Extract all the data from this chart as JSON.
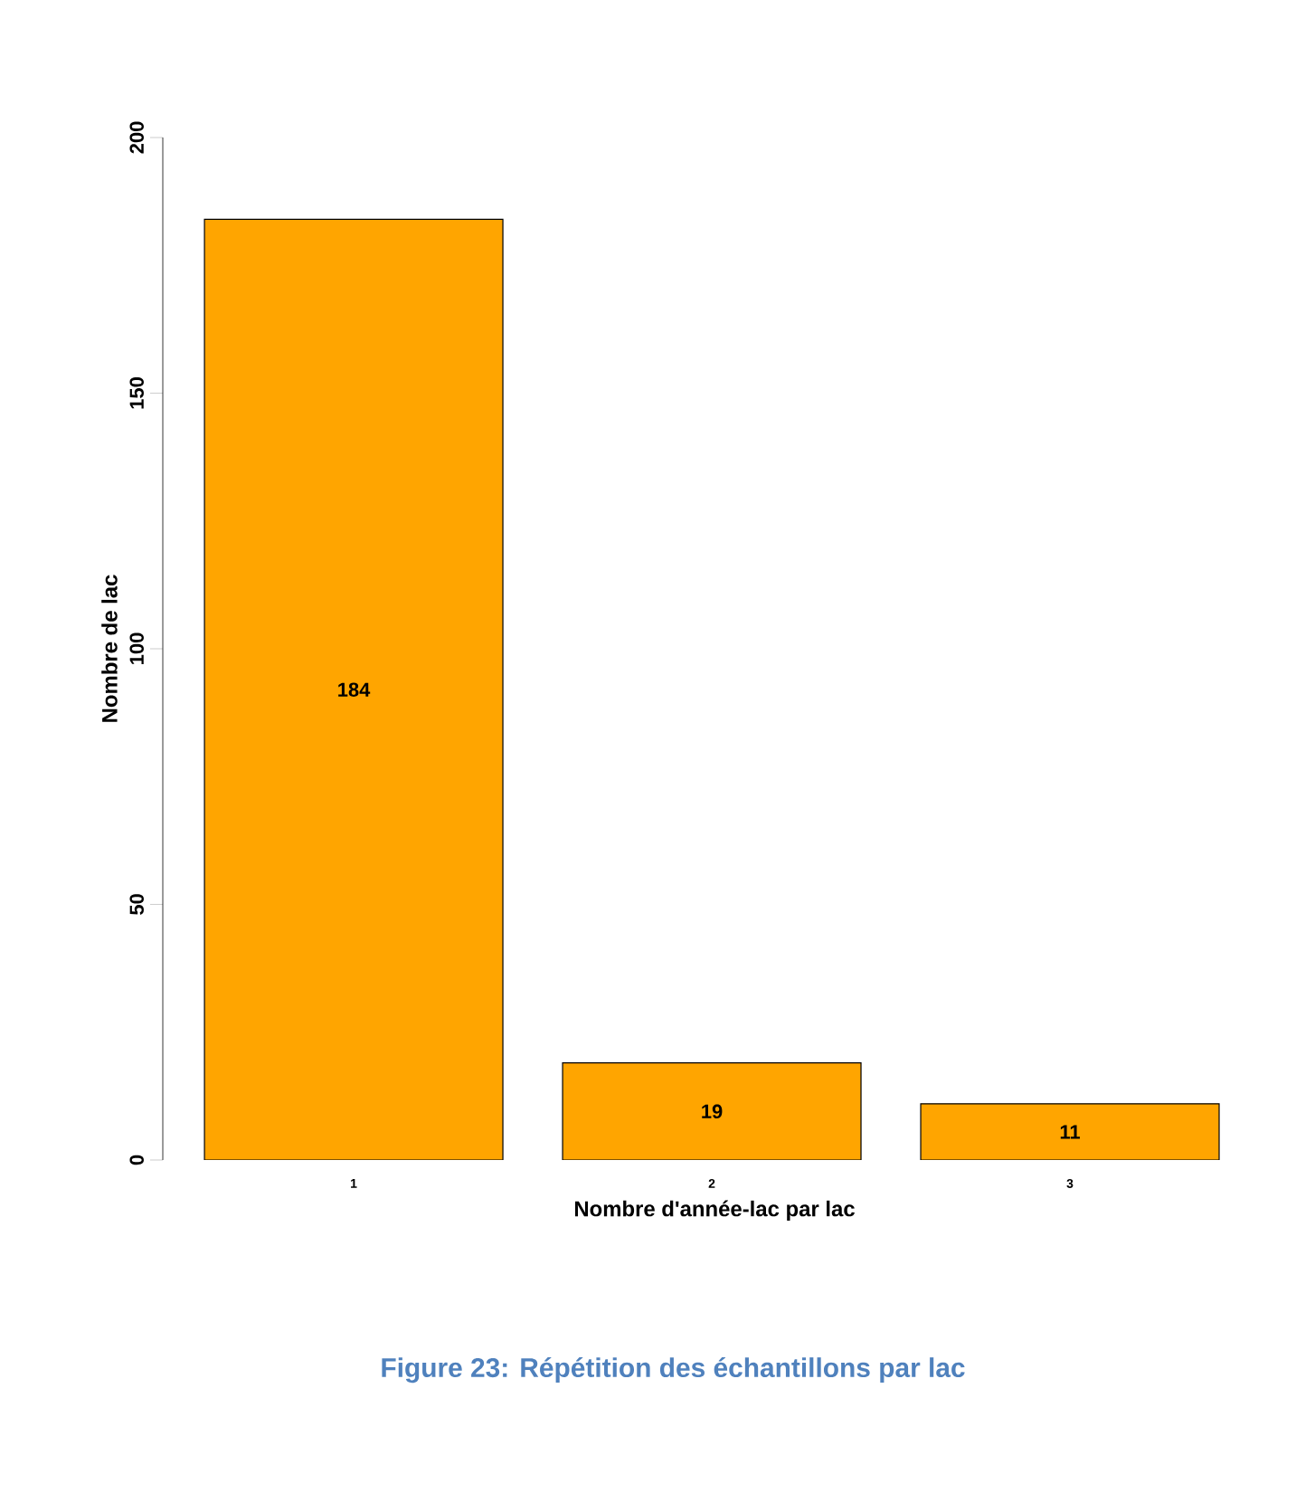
{
  "chart_data": {
    "type": "bar",
    "xlabel": "Nombre d'année-lac par lac",
    "ylabel": "Nombre de lac",
    "categories": [
      "1",
      "2",
      "3"
    ],
    "values": [
      184,
      19,
      11
    ],
    "color": "#ffa500",
    "ylim": [
      0,
      200
    ],
    "yticks": [
      0,
      50,
      100,
      150,
      200
    ],
    "data_labels": true,
    "annotations": [
      "Figure 23: Répétition des échantillons par lac"
    ]
  }
}
